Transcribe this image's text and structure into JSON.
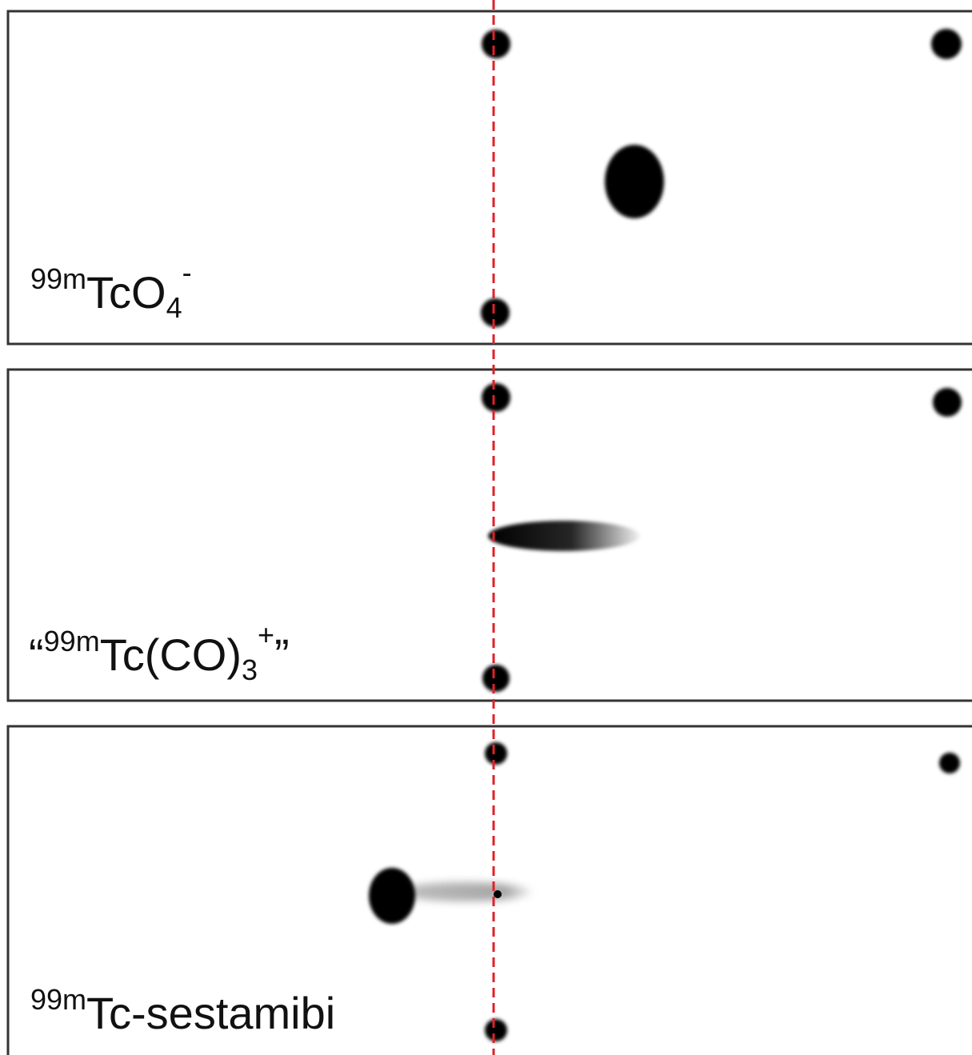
{
  "panels": [
    {
      "label": {
        "mass": "99m",
        "formula": "TcO",
        "subscript": "4",
        "charge": "-"
      }
    },
    {
      "label": {
        "open_quote": "“",
        "mass": "99m",
        "formula": "Tc(CO)",
        "subscript": "3",
        "charge": "+",
        "close_quote": "”"
      }
    },
    {
      "label": {
        "mass": "99m",
        "formula": "Tc-sestamibi"
      }
    }
  ]
}
